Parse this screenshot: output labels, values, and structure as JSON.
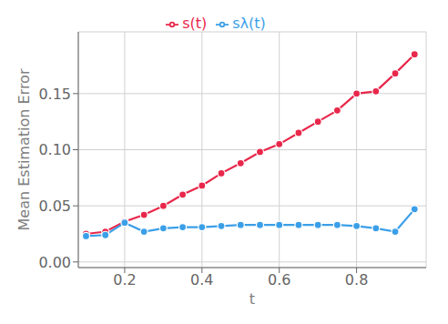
{
  "chart_data": {
    "type": "line",
    "x_label": "t",
    "y_label": "Mean Estimation Error",
    "x": [
      0.1,
      0.15,
      0.2,
      0.25,
      0.3,
      0.35,
      0.4,
      0.45,
      0.5,
      0.55,
      0.6,
      0.65,
      0.7,
      0.75,
      0.8,
      0.85,
      0.9,
      0.95
    ],
    "series": [
      {
        "name": "s(t)",
        "color": "#E8274B",
        "marker": "circle",
        "values": [
          0.025,
          0.027,
          0.036,
          0.042,
          0.05,
          0.06,
          0.068,
          0.079,
          0.088,
          0.098,
          0.105,
          0.115,
          0.125,
          0.135,
          0.15,
          0.152,
          0.168,
          0.185
        ]
      },
      {
        "name": "sλ(t)",
        "color": "#3B9FE8",
        "marker": "circle",
        "values": [
          0.023,
          0.024,
          0.035,
          0.027,
          0.03,
          0.031,
          0.031,
          0.032,
          0.033,
          0.033,
          0.033,
          0.033,
          0.033,
          0.033,
          0.032,
          0.03,
          0.027,
          0.047
        ]
      }
    ],
    "xlim": [
      0.08,
      0.98
    ],
    "xticks": [
      0.2,
      0.4,
      0.6,
      0.8
    ],
    "ylim": [
      -0.005,
      0.205
    ],
    "yticks": [
      {
        "value": 0,
        "label": "0.00"
      },
      0.05,
      {
        "value": 0.1,
        "label": "0.10"
      },
      0.15
    ],
    "grid": true,
    "legend": "top"
  }
}
